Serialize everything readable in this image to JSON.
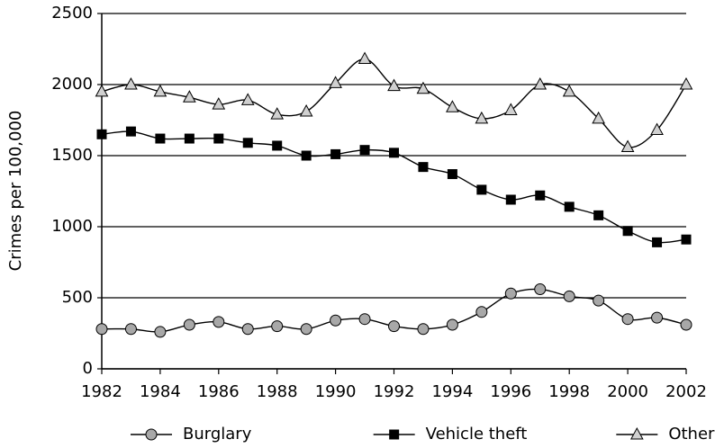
{
  "chart_data": {
    "type": "line",
    "y_label": "Crimes per 100,000",
    "x": [
      1982,
      1983,
      1984,
      1985,
      1986,
      1987,
      1988,
      1989,
      1990,
      1991,
      1992,
      1993,
      1994,
      1995,
      1996,
      1997,
      1998,
      1999,
      2000,
      2001,
      2002
    ],
    "series": [
      {
        "name": "Burglary",
        "color": "#000000",
        "marker": "circle",
        "marker_color": "#a8a8a8",
        "values": [
          280,
          280,
          260,
          310,
          330,
          280,
          300,
          280,
          340,
          350,
          300,
          280,
          310,
          400,
          530,
          560,
          510,
          480,
          350,
          360,
          310
        ]
      },
      {
        "name": "Vehicle theft",
        "color": "#000000",
        "marker": "square",
        "marker_color": "#000000",
        "values": [
          1650,
          1670,
          1620,
          1620,
          1620,
          1590,
          1570,
          1500,
          1510,
          1540,
          1520,
          1420,
          1370,
          1260,
          1190,
          1220,
          1140,
          1080,
          970,
          890,
          910
        ]
      },
      {
        "name": "Other theft",
        "color": "#000000",
        "marker": "triangle",
        "marker_color": "#d0d0d0",
        "values": [
          1950,
          2000,
          1950,
          1910,
          1860,
          1890,
          1790,
          1810,
          2010,
          2180,
          1990,
          1970,
          1840,
          1760,
          1820,
          2000,
          1950,
          1760,
          1560,
          1680,
          2000
        ]
      }
    ],
    "xlim": [
      1982,
      2002
    ],
    "xticks": [
      1982,
      1984,
      1986,
      1988,
      1990,
      1992,
      1994,
      1996,
      1998,
      2000,
      2002
    ],
    "ylim": [
      0,
      2500
    ],
    "yticks": [
      0,
      500,
      1000,
      1500,
      2000,
      2500
    ],
    "grid": true,
    "legend": "bottom",
    "smooth": true
  }
}
